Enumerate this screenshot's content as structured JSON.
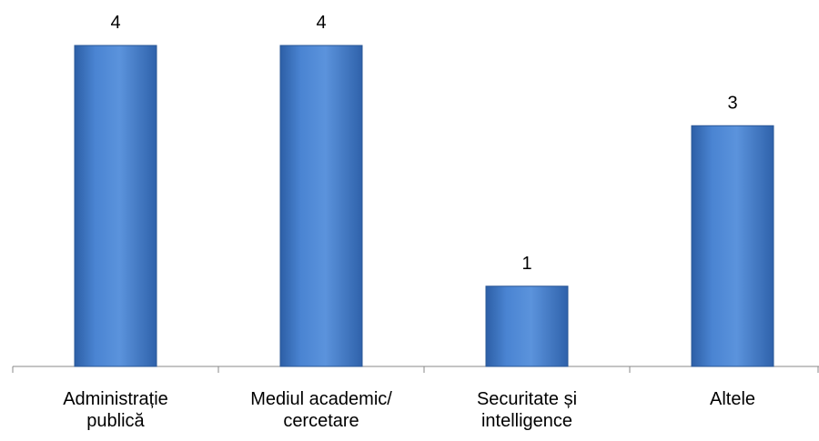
{
  "chart_data": {
    "type": "bar",
    "categories": [
      [
        "Administrație",
        "publică"
      ],
      [
        "Mediul academic/",
        "cercetare"
      ],
      [
        "Securitate și",
        "intelligence"
      ],
      [
        "Altele"
      ]
    ],
    "values": [
      4,
      4,
      1,
      3
    ],
    "data_labels": [
      "4",
      "4",
      "1",
      "3"
    ],
    "ylim": [
      0,
      4
    ],
    "grid": false,
    "legend": "none",
    "bar_color": "#3f76c4",
    "bar_edge_color": "#2a5796",
    "axis_color": "#888888"
  }
}
